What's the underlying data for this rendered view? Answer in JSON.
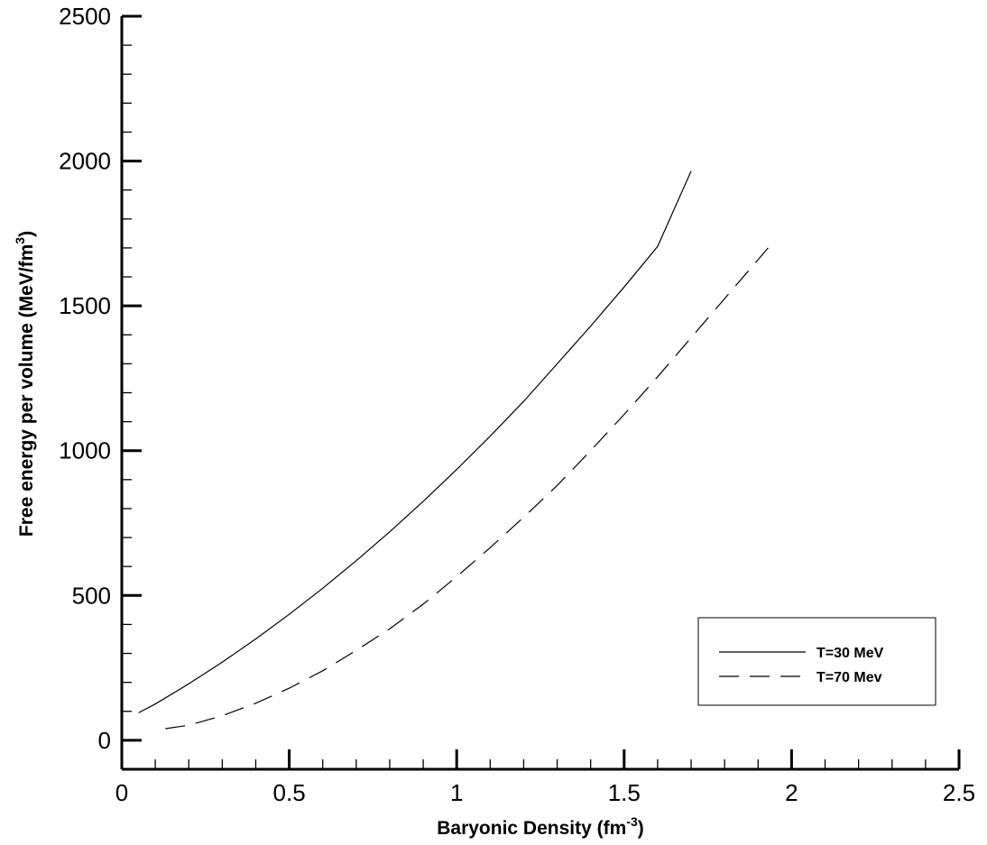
{
  "chart_data": {
    "type": "line",
    "xlabel": "Baryonic Density (fm",
    "xlabel_sup": "-3",
    "xlabel_tail": ")",
    "ylabel": "Free energy per volume (MeV/fm",
    "ylabel_sup": "3",
    "ylabel_tail": ")",
    "xlim": [
      0,
      2.5
    ],
    "ylim": [
      -100,
      2500
    ],
    "x_ticks": [
      0,
      0.5,
      1,
      1.5,
      2,
      2.5
    ],
    "x_tick_labels": [
      "0",
      "0.5",
      "1",
      "1.5",
      "2",
      "2.5"
    ],
    "y_ticks": [
      0,
      500,
      1000,
      1500,
      2000,
      2500
    ],
    "y_tick_labels": [
      "0",
      "500",
      "1000",
      "1500",
      "2000",
      "2500"
    ],
    "grid": false,
    "legend_position": "bottom-right",
    "series": [
      {
        "name": "T=30 MeV",
        "style": "solid",
        "x": [
          0.05,
          0.1,
          0.2,
          0.3,
          0.4,
          0.5,
          0.6,
          0.7,
          0.8,
          0.9,
          1.0,
          1.1,
          1.2,
          1.3,
          1.4,
          1.5,
          1.6,
          1.7
        ],
        "y": [
          95,
          125,
          195,
          270,
          350,
          435,
          525,
          620,
          720,
          825,
          935,
          1050,
          1170,
          1300,
          1430,
          1565,
          1705,
          1965
        ]
      },
      {
        "name": "T=70 Mev",
        "style": "dashed",
        "x": [
          0.13,
          0.2,
          0.3,
          0.4,
          0.5,
          0.6,
          0.7,
          0.8,
          0.9,
          1.0,
          1.1,
          1.2,
          1.3,
          1.4,
          1.5,
          1.6,
          1.7,
          1.8,
          1.93
        ],
        "y": [
          40,
          52,
          85,
          128,
          180,
          240,
          310,
          385,
          470,
          565,
          665,
          770,
          880,
          1000,
          1125,
          1255,
          1390,
          1525,
          1700
        ]
      }
    ]
  }
}
